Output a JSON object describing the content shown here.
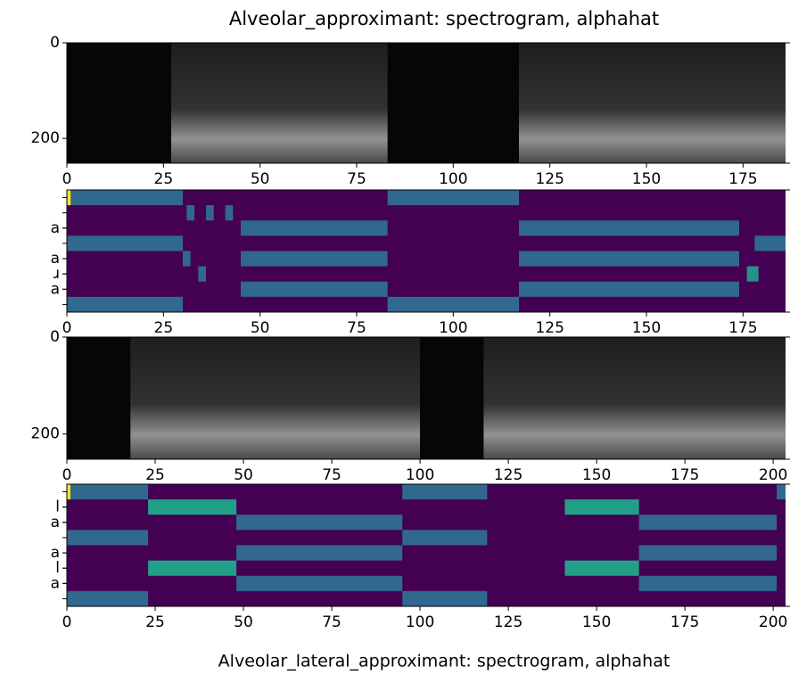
{
  "chart_data": [
    {
      "type": "image",
      "title": "Alveolar_approximant: spectrogram, alphahat",
      "xlim": [
        0,
        186
      ],
      "xticks": [
        0,
        25,
        50,
        75,
        100,
        125,
        150,
        175
      ],
      "ylim": [
        0,
        252
      ],
      "yticks": [
        0,
        200
      ],
      "inverted": true
    },
    {
      "type": "heatmap",
      "xlim": [
        0,
        186
      ],
      "xticks": [
        0,
        25,
        50,
        75,
        100,
        125,
        150,
        175
      ],
      "ylim": [
        -0.5,
        7.5
      ],
      "inverted": true,
      "yticks": [
        {
          "value": 2,
          "label": "a"
        },
        {
          "value": 4,
          "label": "a"
        },
        {
          "value": 5,
          "label": "ɹ"
        },
        {
          "value": 6,
          "label": "a"
        }
      ],
      "ytick_marks": [
        0,
        1,
        2,
        3,
        4,
        5,
        6,
        7
      ],
      "cells": [
        [
          0,
          0,
          1,
          1
        ],
        [
          0,
          1,
          30,
          0.35
        ],
        [
          0,
          83,
          117,
          0.35
        ],
        [
          1,
          31,
          33,
          0.35
        ],
        [
          1,
          36,
          38,
          0.35
        ],
        [
          1,
          41,
          43,
          0.35
        ],
        [
          2,
          45,
          83,
          0.35
        ],
        [
          2,
          117,
          174,
          0.35
        ],
        [
          3,
          0,
          30,
          0.35
        ],
        [
          3,
          178,
          186,
          0.35
        ],
        [
          4,
          30,
          32,
          0.35
        ],
        [
          4,
          45,
          83,
          0.35
        ],
        [
          4,
          117,
          174,
          0.35
        ],
        [
          5,
          34,
          36,
          0.35
        ],
        [
          5,
          176,
          179,
          0.5
        ],
        [
          6,
          45,
          83,
          0.35
        ],
        [
          6,
          117,
          174,
          0.35
        ],
        [
          7,
          0,
          30,
          0.35
        ],
        [
          7,
          83,
          117,
          0.35
        ]
      ]
    },
    {
      "type": "image",
      "xlim": [
        0,
        203.5
      ],
      "xticks": [
        0,
        25,
        50,
        75,
        100,
        125,
        150,
        175,
        200
      ],
      "ylim": [
        0,
        252
      ],
      "yticks": [
        0,
        200
      ],
      "inverted": true
    },
    {
      "type": "heatmap",
      "xlim": [
        0,
        203.5
      ],
      "xticks": [
        0,
        25,
        50,
        75,
        100,
        125,
        150,
        175,
        200
      ],
      "ylim": [
        -0.5,
        7.5
      ],
      "inverted": true,
      "xlabel": "Alveolar_lateral_approximant: spectrogram, alphahat",
      "yticks": [
        {
          "value": 1,
          "label": "l"
        },
        {
          "value": 2,
          "label": "a"
        },
        {
          "value": 4,
          "label": "a"
        },
        {
          "value": 5,
          "label": "l"
        },
        {
          "value": 6,
          "label": "a"
        }
      ],
      "ytick_marks": [
        0,
        1,
        2,
        3,
        4,
        5,
        6,
        7
      ],
      "cells": [
        [
          0,
          0,
          1,
          1
        ],
        [
          0,
          1,
          23,
          0.35
        ],
        [
          0,
          95,
          119,
          0.35
        ],
        [
          0,
          201,
          203.5,
          0.35
        ],
        [
          1,
          23,
          48,
          0.55
        ],
        [
          1,
          141,
          162,
          0.55
        ],
        [
          2,
          48,
          95,
          0.35
        ],
        [
          2,
          162,
          201,
          0.35
        ],
        [
          3,
          0,
          23,
          0.35
        ],
        [
          3,
          95,
          119,
          0.35
        ],
        [
          4,
          48,
          95,
          0.35
        ],
        [
          4,
          162,
          201,
          0.35
        ],
        [
          5,
          23,
          48,
          0.55
        ],
        [
          5,
          141,
          162,
          0.55
        ],
        [
          6,
          48,
          95,
          0.35
        ],
        [
          6,
          162,
          201,
          0.35
        ],
        [
          7,
          0,
          23,
          0.35
        ],
        [
          7,
          95,
          119,
          0.35
        ]
      ]
    }
  ]
}
